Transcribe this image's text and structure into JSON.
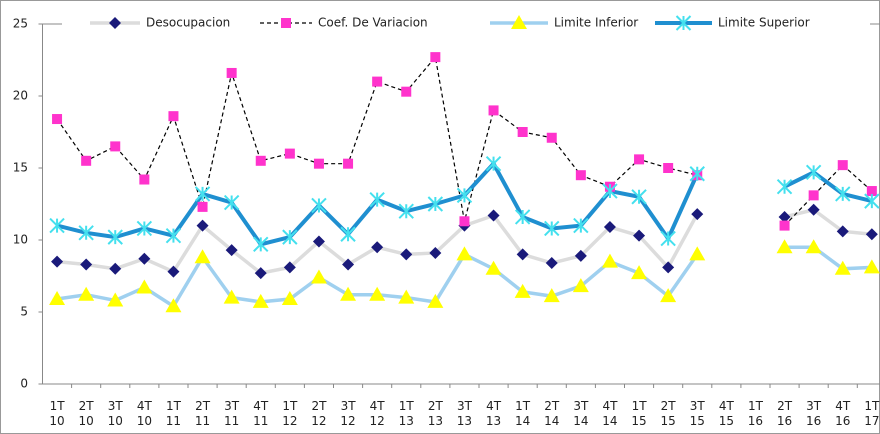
{
  "chart_data": {
    "type": "line",
    "categories": [
      "1T 10",
      "2T 10",
      "3T 10",
      "4T 10",
      "1T 11",
      "2T 11",
      "3T 11",
      "4T 11",
      "1T 12",
      "2T 12",
      "3T 12",
      "4T 12",
      "1T 13",
      "2T 13",
      "3T 13",
      "4T 13",
      "1T 14",
      "2T 14",
      "3T 14",
      "4T 14",
      "1T 15",
      "2T 15",
      "3T 15",
      "4T 15",
      "1T 16",
      "2T 16",
      "3T 16",
      "4T 16",
      "1T 17"
    ],
    "series": [
      {
        "name": "Desocupacion",
        "color": "#1a1a7a",
        "line_color": "#dcdcdc",
        "marker": "diamond",
        "values": [
          8.5,
          8.3,
          8.0,
          8.7,
          7.8,
          11.0,
          9.3,
          7.7,
          8.1,
          9.9,
          8.3,
          9.5,
          9.0,
          9.1,
          11.0,
          11.7,
          9.0,
          8.4,
          8.9,
          10.9,
          10.3,
          8.1,
          11.8,
          null,
          null,
          11.6,
          12.1,
          10.6,
          10.4
        ]
      },
      {
        "name": "Coef. De Variacion",
        "color": "#ff33cc",
        "line_color": "#000000",
        "dashed": true,
        "marker": "square",
        "values": [
          18.4,
          15.5,
          16.5,
          14.2,
          18.6,
          12.3,
          21.6,
          15.5,
          16.0,
          15.3,
          15.3,
          21.0,
          20.3,
          22.7,
          11.3,
          19.0,
          17.5,
          17.1,
          14.5,
          13.7,
          15.6,
          15.0,
          14.5,
          null,
          null,
          11.0,
          13.1,
          15.2,
          13.4
        ]
      },
      {
        "name": "Limite Inferior",
        "color": "#ffff00",
        "line_color": "#9fd0ef",
        "marker": "triangle",
        "values": [
          5.9,
          6.2,
          5.8,
          6.7,
          5.4,
          8.8,
          6.0,
          5.7,
          5.9,
          7.4,
          6.2,
          6.2,
          6.0,
          5.7,
          9.0,
          8.0,
          6.4,
          6.1,
          6.8,
          8.5,
          7.7,
          6.1,
          9.0,
          null,
          null,
          9.5,
          9.5,
          8.0,
          8.1
        ]
      },
      {
        "name": "Limite Superior",
        "color": "#44e0ee",
        "line_color": "#1f8fd0",
        "marker": "cross",
        "values": [
          11.0,
          10.5,
          10.2,
          10.8,
          10.3,
          13.2,
          12.6,
          9.7,
          10.2,
          12.4,
          10.4,
          12.8,
          12.0,
          12.5,
          13.1,
          15.3,
          11.6,
          10.8,
          11.0,
          13.4,
          13.0,
          10.1,
          14.6,
          null,
          null,
          13.7,
          14.7,
          13.2,
          12.7
        ]
      }
    ],
    "ylim": [
      0,
      25
    ],
    "yticks": [
      0,
      5,
      10,
      15,
      20,
      25
    ]
  }
}
